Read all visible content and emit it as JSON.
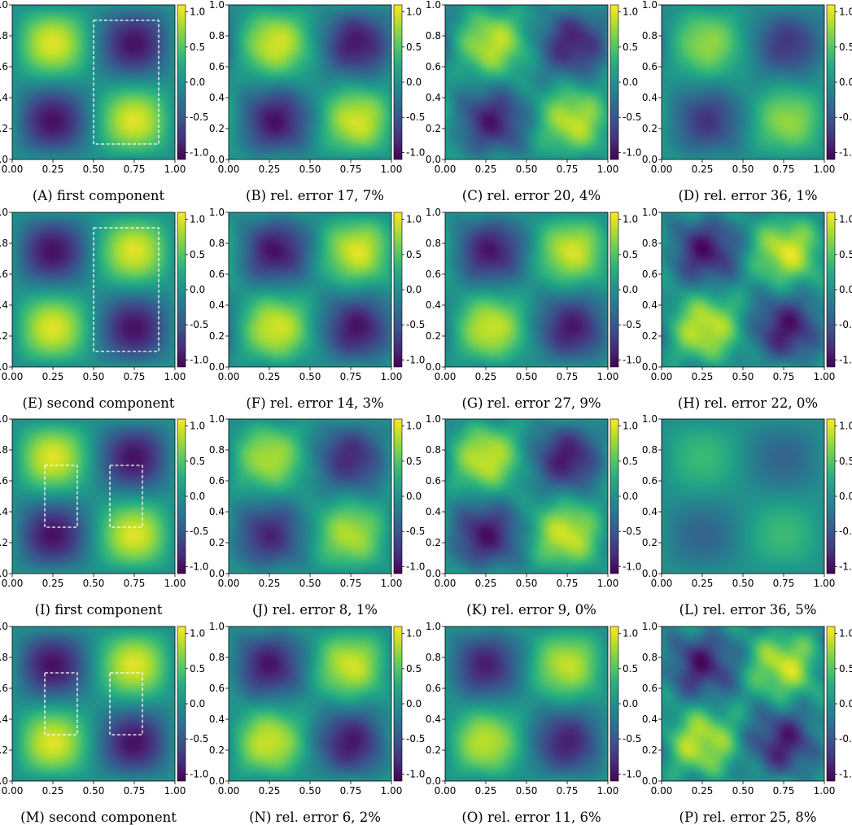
{
  "figure": {
    "colormap": "viridis",
    "colorbar_ticks": [
      "1.0",
      "0.5",
      "0.0",
      "-0.5",
      "-1.0"
    ],
    "colorbar_range": [
      -1.1,
      1.1
    ],
    "axes": {
      "x_ticks": [
        "0.00",
        "0.25",
        "0.50",
        "0.75",
        "1.00"
      ],
      "y_ticks": [
        "0.0",
        "0.2",
        "0.4",
        "0.6",
        "0.8",
        "1.0"
      ],
      "xlim": [
        0,
        1
      ],
      "ylim": [
        0,
        1
      ]
    },
    "rows": [
      {
        "pattern": "p",
        "fx": 2,
        "fy": 2,
        "panels": [
          {
            "letter": "A",
            "text": "first component",
            "amp": 1.0,
            "dx": 0.0,
            "noise": 0.0,
            "box": [
              [
                0.5,
                0.1,
                0.9,
                0.9
              ]
            ]
          },
          {
            "letter": "B",
            "text": "rel. error 17, 7%",
            "amp": 0.97,
            "dx": 0.04,
            "noise": 0.05,
            "box": []
          },
          {
            "letter": "C",
            "text": "rel. error 20, 4%",
            "amp": 0.9,
            "dx": 0.04,
            "noise": 0.12,
            "box": []
          },
          {
            "letter": "D",
            "text": "rel. error 36, 1%",
            "amp": 0.75,
            "dx": 0.03,
            "noise": 0.04,
            "box": []
          }
        ]
      },
      {
        "pattern": "n",
        "fx": 2,
        "fy": 2,
        "panels": [
          {
            "letter": "E",
            "text": "second component",
            "amp": 1.0,
            "dx": 0.0,
            "noise": 0.0,
            "box": [
              [
                0.5,
                0.1,
                0.9,
                0.9
              ]
            ]
          },
          {
            "letter": "F",
            "text": "rel. error 14, 3%",
            "amp": 0.98,
            "dx": 0.04,
            "noise": 0.05,
            "box": []
          },
          {
            "letter": "G",
            "text": "rel. error 27, 9%",
            "amp": 0.95,
            "dx": 0.03,
            "noise": 0.05,
            "box": []
          },
          {
            "letter": "H",
            "text": "rel. error 22, 0%",
            "amp": 0.95,
            "dx": 0.02,
            "noise": 0.15,
            "box": []
          }
        ]
      },
      {
        "pattern": "p",
        "fx": 2,
        "fy": 2,
        "panels": [
          {
            "letter": "I",
            "text": "first component",
            "amp": 1.0,
            "dx": 0.0,
            "noise": 0.0,
            "box": [
              [
                0.2,
                0.3,
                0.4,
                0.7
              ],
              [
                0.6,
                0.3,
                0.8,
                0.7
              ]
            ]
          },
          {
            "letter": "J",
            "text": "rel. error 8, 1%",
            "amp": 0.85,
            "dx": 0.0,
            "noise": 0.06,
            "box": []
          },
          {
            "letter": "K",
            "text": "rel. error 9, 0%",
            "amp": 0.95,
            "dx": 0.0,
            "noise": 0.1,
            "box": []
          },
          {
            "letter": "L",
            "text": "rel. error 36, 5%",
            "amp": 0.4,
            "dx": 0.0,
            "noise": 0.0,
            "box": []
          }
        ]
      },
      {
        "pattern": "n",
        "fx": 2,
        "fy": 2,
        "panels": [
          {
            "letter": "M",
            "text": "second component",
            "amp": 1.0,
            "dx": 0.0,
            "noise": 0.0,
            "box": [
              [
                0.2,
                0.3,
                0.4,
                0.7
              ],
              [
                0.6,
                0.3,
                0.8,
                0.7
              ]
            ]
          },
          {
            "letter": "N",
            "text": "rel. error 6, 2%",
            "amp": 0.95,
            "dx": 0.0,
            "noise": 0.05,
            "box": []
          },
          {
            "letter": "O",
            "text": "rel. error 11, 6%",
            "amp": 0.9,
            "dx": 0.0,
            "noise": 0.04,
            "box": []
          },
          {
            "letter": "P",
            "text": "rel. error 25, 8%",
            "amp": 0.9,
            "dx": 0.0,
            "noise": 0.2,
            "box": []
          }
        ]
      }
    ]
  }
}
